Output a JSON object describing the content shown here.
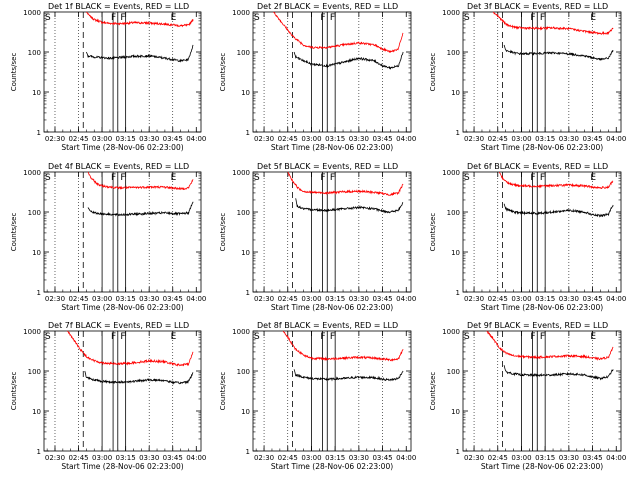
{
  "chart_data": [
    {
      "type": "line",
      "title": "Det 1f BLACK = Events, RED = LLD",
      "ylabel": "Counts/sec",
      "xlabel": "Start Time (28-Nov-06 02:23:00)",
      "yscale": "log",
      "ylim": [
        1,
        1000
      ],
      "xticks": [
        "02:30",
        "02:45",
        "03:00",
        "03:15",
        "03:30",
        "03:45",
        "04:00"
      ],
      "yticks": [
        "1",
        "10",
        "100",
        "1000"
      ],
      "markers": [
        {
          "label": "S",
          "time": "02:23"
        },
        {
          "label": "F",
          "time": "03:05"
        },
        {
          "label": "F",
          "time": "03:11"
        },
        {
          "label": "E",
          "time": "03:43"
        }
      ],
      "series": [
        {
          "color": "#ff0000",
          "x": [
            "02:50",
            "02:52",
            "02:55",
            "03:00",
            "03:05",
            "03:10",
            "03:15",
            "03:20",
            "03:30",
            "03:40",
            "03:45",
            "03:50",
            "03:55",
            "03:58"
          ],
          "y": [
            1000,
            800,
            650,
            550,
            520,
            510,
            520,
            540,
            530,
            500,
            480,
            450,
            470,
            650
          ]
        },
        {
          "color": "#000000",
          "x": [
            "02:50",
            "02:51",
            "02:55",
            "03:00",
            "03:05",
            "03:10",
            "03:15",
            "03:20",
            "03:30",
            "03:40",
            "03:45",
            "03:50",
            "03:55",
            "03:58"
          ],
          "y": [
            100,
            80,
            75,
            72,
            70,
            72,
            75,
            78,
            80,
            70,
            65,
            60,
            65,
            150
          ]
        }
      ]
    },
    {
      "type": "line",
      "title": "Det 2f BLACK = Events, RED = LLD",
      "ylabel": "Counts/sec",
      "xlabel": "Start Time (28-Nov-06 02:23:00)",
      "yscale": "log",
      "ylim": [
        1,
        1000
      ],
      "xticks": [
        "02:30",
        "02:45",
        "03:00",
        "03:15",
        "03:30",
        "03:45",
        "04:00"
      ],
      "yticks": [
        "1",
        "10",
        "100",
        "1000"
      ],
      "markers": [
        {
          "label": "S",
          "time": "02:23"
        },
        {
          "label": "F",
          "time": "03:05"
        },
        {
          "label": "F",
          "time": "03:11"
        }
      ],
      "series": [
        {
          "color": "#ff0000",
          "x": [
            "02:36",
            "02:42",
            "02:48",
            "02:55",
            "03:00",
            "03:10",
            "03:20",
            "03:30",
            "03:40",
            "03:45",
            "03:50",
            "03:55",
            "03:58"
          ],
          "y": [
            1000,
            500,
            250,
            150,
            130,
            130,
            150,
            170,
            150,
            120,
            100,
            120,
            300
          ]
        },
        {
          "color": "#000000",
          "x": [
            "02:49",
            "02:50",
            "02:55",
            "03:00",
            "03:10",
            "03:20",
            "03:30",
            "03:40",
            "03:45",
            "03:50",
            "03:55",
            "03:58"
          ],
          "y": [
            100,
            75,
            60,
            50,
            45,
            55,
            70,
            60,
            45,
            40,
            45,
            100
          ]
        }
      ]
    },
    {
      "type": "line",
      "title": "Det 3f BLACK = Events, RED = LLD",
      "ylabel": "Counts/sec",
      "xlabel": "Start Time (28-Nov-06 02:23:00)",
      "yscale": "log",
      "ylim": [
        1,
        1000
      ],
      "xticks": [
        "02:30",
        "02:45",
        "03:00",
        "03:15",
        "03:30",
        "03:45",
        "04:00"
      ],
      "yticks": [
        "1",
        "10",
        "100",
        "1000"
      ],
      "markers": [
        {
          "label": "S",
          "time": "02:23"
        },
        {
          "label": "F",
          "time": "03:05"
        },
        {
          "label": "F",
          "time": "03:11"
        },
        {
          "label": "E",
          "time": "03:43"
        }
      ],
      "series": [
        {
          "color": "#ff0000",
          "x": [
            "02:42",
            "02:45",
            "02:50",
            "02:55",
            "03:00",
            "03:10",
            "03:20",
            "03:30",
            "03:40",
            "03:45",
            "03:50",
            "03:55",
            "03:58"
          ],
          "y": [
            1000,
            800,
            500,
            420,
            400,
            390,
            400,
            380,
            330,
            310,
            290,
            300,
            400
          ]
        },
        {
          "color": "#000000",
          "x": [
            "02:49",
            "02:50",
            "02:55",
            "03:00",
            "03:10",
            "03:20",
            "03:30",
            "03:40",
            "03:45",
            "03:50",
            "03:55",
            "03:58"
          ],
          "y": [
            150,
            110,
            95,
            90,
            92,
            95,
            90,
            80,
            72,
            65,
            70,
            110
          ]
        }
      ]
    },
    {
      "type": "line",
      "title": "Det 4f BLACK = Events, RED = LLD",
      "ylabel": "Counts/sec",
      "xlabel": "Start Time (28-Nov-06 02:23:00)",
      "yscale": "log",
      "ylim": [
        1,
        1000
      ],
      "xticks": [
        "02:30",
        "02:45",
        "03:00",
        "03:15",
        "03:30",
        "03:45",
        "04:00"
      ],
      "yticks": [
        "1",
        "10",
        "100",
        "1000"
      ],
      "markers": [
        {
          "label": "S",
          "time": "02:23"
        },
        {
          "label": "F",
          "time": "03:05"
        },
        {
          "label": "F",
          "time": "03:11"
        },
        {
          "label": "E",
          "time": "03:43"
        }
      ],
      "series": [
        {
          "color": "#ff0000",
          "x": [
            "02:51",
            "02:53",
            "02:57",
            "03:00",
            "03:10",
            "03:20",
            "03:30",
            "03:40",
            "03:45",
            "03:50",
            "03:55",
            "03:58"
          ],
          "y": [
            1000,
            700,
            500,
            450,
            400,
            410,
            420,
            420,
            400,
            380,
            400,
            650
          ]
        },
        {
          "color": "#000000",
          "x": [
            "02:51",
            "02:52",
            "02:55",
            "03:00",
            "03:10",
            "03:20",
            "03:30",
            "03:40",
            "03:45",
            "03:50",
            "03:55",
            "03:58"
          ],
          "y": [
            130,
            110,
            95,
            90,
            85,
            88,
            92,
            95,
            92,
            90,
            95,
            180
          ]
        }
      ]
    },
    {
      "type": "line",
      "title": "Det 5f BLACK = Events, RED = LLD",
      "ylabel": "Counts/sec",
      "xlabel": "Start Time (28-Nov-06 02:23:00)",
      "yscale": "log",
      "ylim": [
        1,
        1000
      ],
      "xticks": [
        "02:30",
        "02:45",
        "03:00",
        "03:15",
        "03:30",
        "03:45",
        "04:00"
      ],
      "yticks": [
        "1",
        "10",
        "100",
        "1000"
      ],
      "markers": [
        {
          "label": "S",
          "time": "02:23"
        },
        {
          "label": "F",
          "time": "03:05"
        },
        {
          "label": "F",
          "time": "03:11"
        }
      ],
      "series": [
        {
          "color": "#ff0000",
          "x": [
            "02:45",
            "02:48",
            "02:52",
            "02:55",
            "03:00",
            "03:10",
            "03:20",
            "03:30",
            "03:40",
            "03:45",
            "03:50",
            "03:55",
            "03:58"
          ],
          "y": [
            1000,
            600,
            380,
            330,
            310,
            300,
            320,
            330,
            310,
            290,
            270,
            300,
            500
          ]
        },
        {
          "color": "#000000",
          "x": [
            "02:50",
            "02:51",
            "02:55",
            "03:00",
            "03:10",
            "03:20",
            "03:30",
            "03:40",
            "03:45",
            "03:50",
            "03:55",
            "03:58"
          ],
          "y": [
            220,
            140,
            120,
            115,
            110,
            120,
            130,
            120,
            105,
            100,
            110,
            170
          ]
        }
      ]
    },
    {
      "type": "line",
      "title": "Det 6f BLACK = Events, RED = LLD",
      "ylabel": "Counts/sec",
      "xlabel": "Start Time (28-Nov-06 02:23:00)",
      "yscale": "log",
      "ylim": [
        1,
        1000
      ],
      "xticks": [
        "02:30",
        "02:45",
        "03:00",
        "03:15",
        "03:30",
        "03:45",
        "04:00"
      ],
      "yticks": [
        "1",
        "10",
        "100",
        "1000"
      ],
      "markers": [
        {
          "label": "S",
          "time": "02:23"
        },
        {
          "label": "F",
          "time": "03:05"
        },
        {
          "label": "F",
          "time": "03:11"
        },
        {
          "label": "E",
          "time": "03:43"
        }
      ],
      "series": [
        {
          "color": "#ff0000",
          "x": [
            "02:46",
            "02:48",
            "02:52",
            "02:55",
            "03:00",
            "03:10",
            "03:20",
            "03:30",
            "03:40",
            "03:45",
            "03:50",
            "03:55",
            "03:58"
          ],
          "y": [
            1000,
            700,
            520,
            480,
            450,
            440,
            460,
            470,
            450,
            420,
            400,
            420,
            600
          ]
        },
        {
          "color": "#000000",
          "x": [
            "02:49",
            "02:50",
            "02:55",
            "03:00",
            "03:10",
            "03:20",
            "03:30",
            "03:40",
            "03:45",
            "03:50",
            "03:55",
            "03:58"
          ],
          "y": [
            160,
            120,
            100,
            95,
            92,
            100,
            110,
            100,
            85,
            80,
            88,
            150
          ]
        }
      ]
    },
    {
      "type": "line",
      "title": "Det 7f BLACK = Events, RED = LLD",
      "ylabel": "Counts/sec",
      "xlabel": "Start Time (28-Nov-06 02:23:00)",
      "yscale": "log",
      "ylim": [
        1,
        1000
      ],
      "xticks": [
        "02:30",
        "02:45",
        "03:00",
        "03:15",
        "03:30",
        "03:45",
        "04:00"
      ],
      "yticks": [
        "1",
        "10",
        "100",
        "1000"
      ],
      "markers": [
        {
          "label": "S",
          "time": "02:23"
        },
        {
          "label": "F",
          "time": "03:05"
        },
        {
          "label": "F",
          "time": "03:11"
        },
        {
          "label": "E",
          "time": "03:43"
        }
      ],
      "series": [
        {
          "color": "#ff0000",
          "x": [
            "02:38",
            "02:42",
            "02:46",
            "02:50",
            "02:55",
            "03:00",
            "03:10",
            "03:20",
            "03:30",
            "03:40",
            "03:45",
            "03:50",
            "03:55",
            "03:58"
          ],
          "y": [
            1000,
            600,
            350,
            230,
            180,
            160,
            150,
            160,
            180,
            170,
            150,
            140,
            150,
            300
          ]
        },
        {
          "color": "#000000",
          "x": [
            "02:49",
            "02:50",
            "02:55",
            "03:00",
            "03:10",
            "03:20",
            "03:30",
            "03:40",
            "03:45",
            "03:50",
            "03:55",
            "03:58"
          ],
          "y": [
            100,
            70,
            60,
            55,
            52,
            55,
            60,
            58,
            52,
            50,
            55,
            90
          ]
        }
      ]
    },
    {
      "type": "line",
      "title": "Det 8f BLACK = Events, RED = LLD",
      "ylabel": "Counts/sec",
      "xlabel": "Start Time (28-Nov-06 02:23:00)",
      "yscale": "log",
      "ylim": [
        1,
        1000
      ],
      "xticks": [
        "02:30",
        "02:45",
        "03:00",
        "03:15",
        "03:30",
        "03:45",
        "04:00"
      ],
      "yticks": [
        "1",
        "10",
        "100",
        "1000"
      ],
      "markers": [
        {
          "label": "S",
          "time": "02:23"
        },
        {
          "label": "F",
          "time": "03:05"
        },
        {
          "label": "F",
          "time": "03:11"
        }
      ],
      "series": [
        {
          "color": "#ff0000",
          "x": [
            "02:42",
            "02:45",
            "02:50",
            "02:55",
            "03:00",
            "03:10",
            "03:20",
            "03:30",
            "03:40",
            "03:45",
            "03:50",
            "03:55",
            "03:58"
          ],
          "y": [
            1000,
            700,
            350,
            250,
            210,
            200,
            210,
            220,
            210,
            200,
            190,
            200,
            350
          ]
        },
        {
          "color": "#000000",
          "x": [
            "02:49",
            "02:50",
            "02:55",
            "03:00",
            "03:10",
            "03:20",
            "03:30",
            "03:40",
            "03:45",
            "03:50",
            "03:55",
            "03:58"
          ],
          "y": [
            110,
            80,
            70,
            65,
            62,
            65,
            70,
            68,
            62,
            60,
            65,
            100
          ]
        }
      ]
    },
    {
      "type": "line",
      "title": "Det 9f BLACK = Events, RED = LLD",
      "ylabel": "Counts/sec",
      "xlabel": "Start Time (28-Nov-06 02:23:00)",
      "yscale": "log",
      "ylim": [
        1,
        1000
      ],
      "xticks": [
        "02:30",
        "02:45",
        "03:00",
        "03:15",
        "03:30",
        "03:45",
        "04:00"
      ],
      "yticks": [
        "1",
        "10",
        "100",
        "1000"
      ],
      "markers": [
        {
          "label": "S",
          "time": "02:23"
        },
        {
          "label": "F",
          "time": "03:05"
        },
        {
          "label": "F",
          "time": "03:11"
        },
        {
          "label": "E",
          "time": "03:43"
        }
      ],
      "series": [
        {
          "color": "#ff0000",
          "x": [
            "02:38",
            "02:42",
            "02:46",
            "02:50",
            "02:55",
            "03:00",
            "03:10",
            "03:20",
            "03:30",
            "03:40",
            "03:45",
            "03:50",
            "03:55",
            "03:58"
          ],
          "y": [
            1000,
            650,
            380,
            280,
            240,
            230,
            220,
            230,
            240,
            230,
            210,
            200,
            220,
            400
          ]
        },
        {
          "color": "#000000",
          "x": [
            "02:49",
            "02:50",
            "02:55",
            "03:00",
            "03:10",
            "03:20",
            "03:30",
            "03:40",
            "03:45",
            "03:50",
            "03:55",
            "03:58"
          ],
          "y": [
            140,
            95,
            85,
            80,
            78,
            80,
            85,
            80,
            70,
            65,
            72,
            110
          ]
        }
      ]
    }
  ]
}
